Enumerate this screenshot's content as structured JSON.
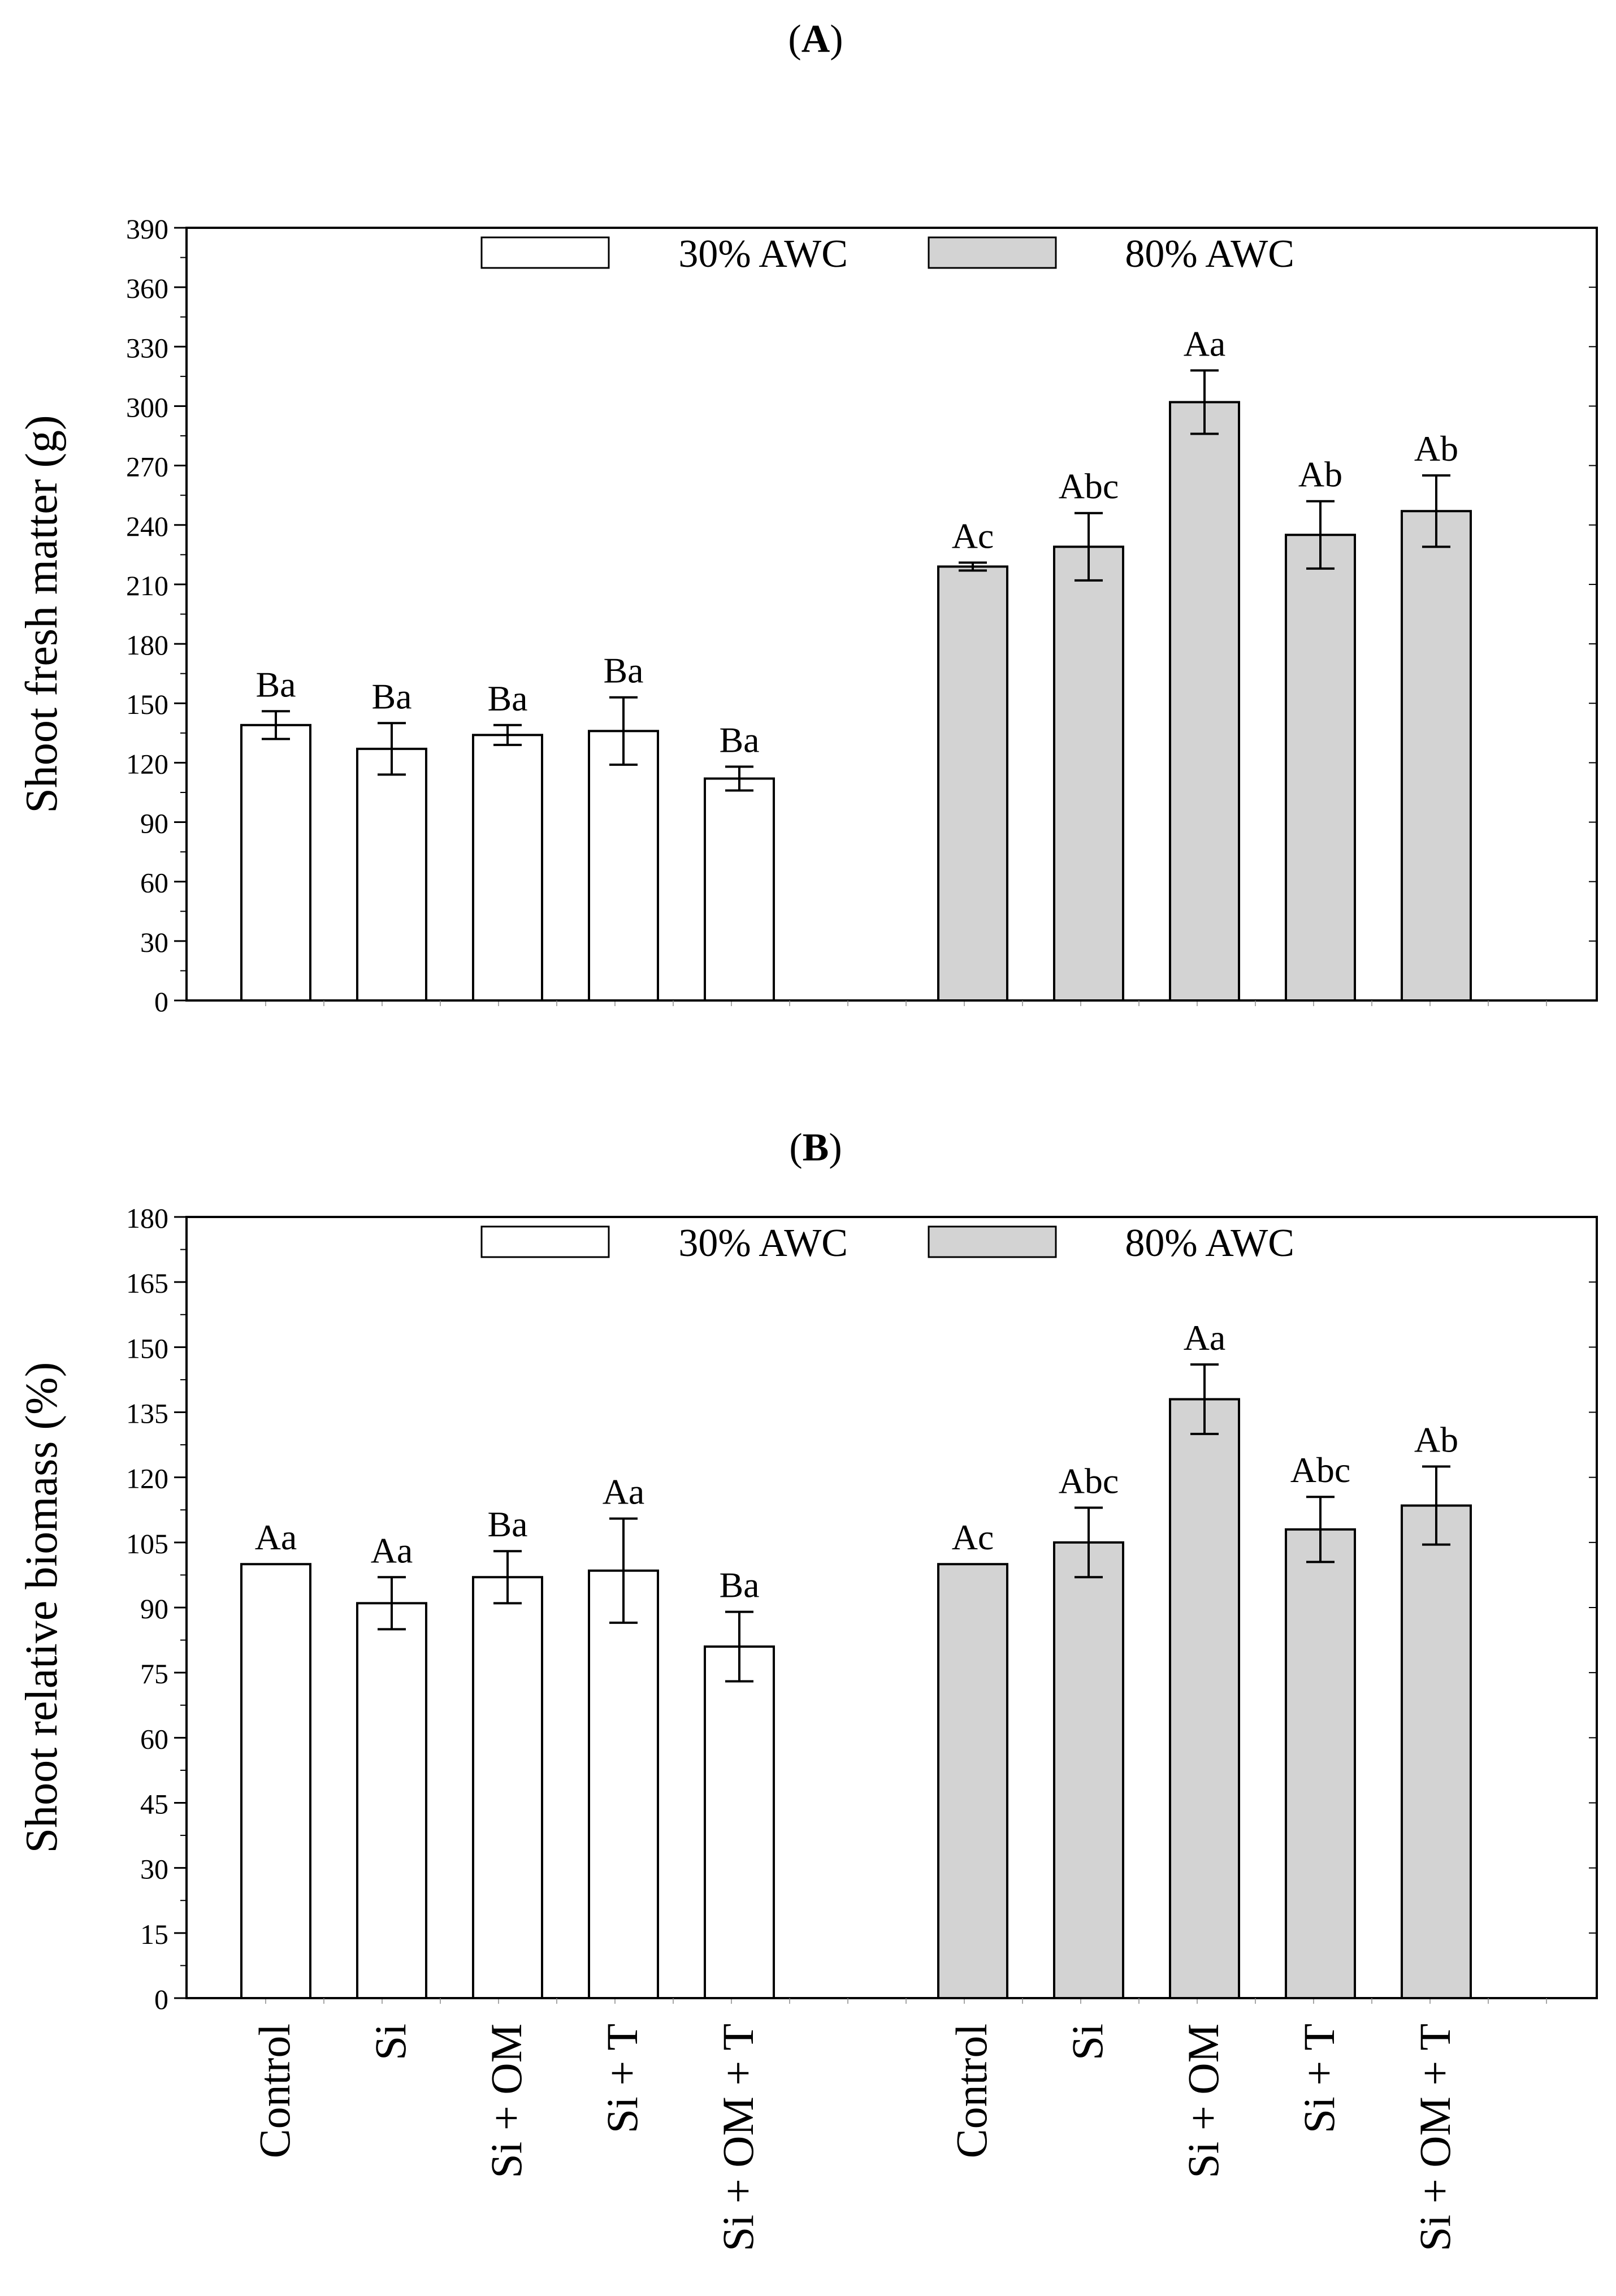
{
  "chart_data": [
    {
      "panel": "A",
      "panel_open": "(",
      "panel_close": ")",
      "type": "bar",
      "title": "(A)",
      "ylabel": "Shoot fresh matter (g)",
      "xlabel": "",
      "ylim": [
        0,
        390
      ],
      "ytick_step": 30,
      "yticks": [
        "0",
        "30",
        "60",
        "90",
        "120",
        "150",
        "180",
        "210",
        "240",
        "270",
        "300",
        "330",
        "360",
        "390"
      ],
      "categories": [
        "Control",
        "Si",
        "Si + OM",
        "Si + T",
        "Si + OM + T"
      ],
      "series": [
        {
          "name": "30% AWC",
          "fill": "#ffffff",
          "values": [
            139,
            127,
            134,
            136,
            112
          ],
          "errors": [
            7,
            13,
            5,
            17,
            6
          ],
          "labels": [
            "Ba",
            "Ba",
            "Ba",
            "Ba",
            "Ba"
          ]
        },
        {
          "name": "80% AWC",
          "fill": "#d3d3d3",
          "values": [
            219,
            229,
            302,
            235,
            247
          ],
          "errors": [
            2,
            17,
            16,
            17,
            18
          ],
          "labels": [
            "Ac",
            "Abc",
            "Aa",
            "Ab",
            "Ab"
          ]
        }
      ],
      "legend": [
        "30% AWC",
        "80% AWC"
      ]
    },
    {
      "panel": "B",
      "panel_open": "(",
      "panel_close": ")",
      "type": "bar",
      "title": "(B)",
      "ylabel": "Shoot relative biomass (%)",
      "xlabel": "",
      "ylim": [
        0,
        180
      ],
      "ytick_step": 15,
      "yticks": [
        "0",
        "15",
        "30",
        "45",
        "60",
        "75",
        "90",
        "105",
        "120",
        "135",
        "150",
        "165",
        "180"
      ],
      "categories": [
        "Control",
        "Si",
        "Si + OM",
        "Si + T",
        "Si + OM + T"
      ],
      "series": [
        {
          "name": "30% AWC",
          "fill": "#ffffff",
          "values": [
            100,
            91,
            97,
            98.5,
            81
          ],
          "errors": [
            0,
            6,
            6,
            12,
            8
          ],
          "labels": [
            "Aa",
            "Aa",
            "Ba",
            "Aa",
            "Ba"
          ]
        },
        {
          "name": "80% AWC",
          "fill": "#d3d3d3",
          "values": [
            100,
            105,
            138,
            108,
            113.5
          ],
          "errors": [
            0,
            8,
            8,
            7.5,
            9
          ],
          "labels": [
            "Ac",
            "Abc",
            "Aa",
            "Abc",
            "Ab"
          ]
        }
      ],
      "legend": [
        "30% AWC",
        "80% AWC"
      ]
    }
  ]
}
